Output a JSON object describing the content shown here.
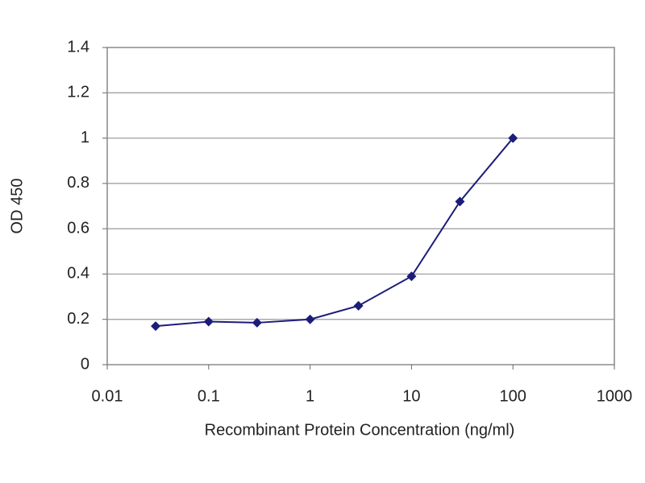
{
  "chart_data": {
    "type": "line",
    "xlabel": "Recombinant Protein Concentration (ng/ml)",
    "ylabel": "OD 450",
    "x": [
      0.03,
      0.1,
      0.3,
      1,
      3,
      10,
      30,
      100
    ],
    "series": [
      {
        "color": "#1c1c7a",
        "values": [
          0.17,
          0.19,
          0.185,
          0.2,
          0.26,
          0.39,
          0.72,
          1.0
        ]
      }
    ],
    "xscale": "log",
    "xlim": [
      0.01,
      1000
    ],
    "xticks": [
      0.01,
      0.1,
      1,
      10,
      100,
      1000
    ],
    "ylim": [
      0,
      1.4
    ],
    "yticks": [
      0,
      0.2,
      0.4,
      0.6,
      0.8,
      1,
      1.2,
      1.4
    ],
    "grid": true
  }
}
